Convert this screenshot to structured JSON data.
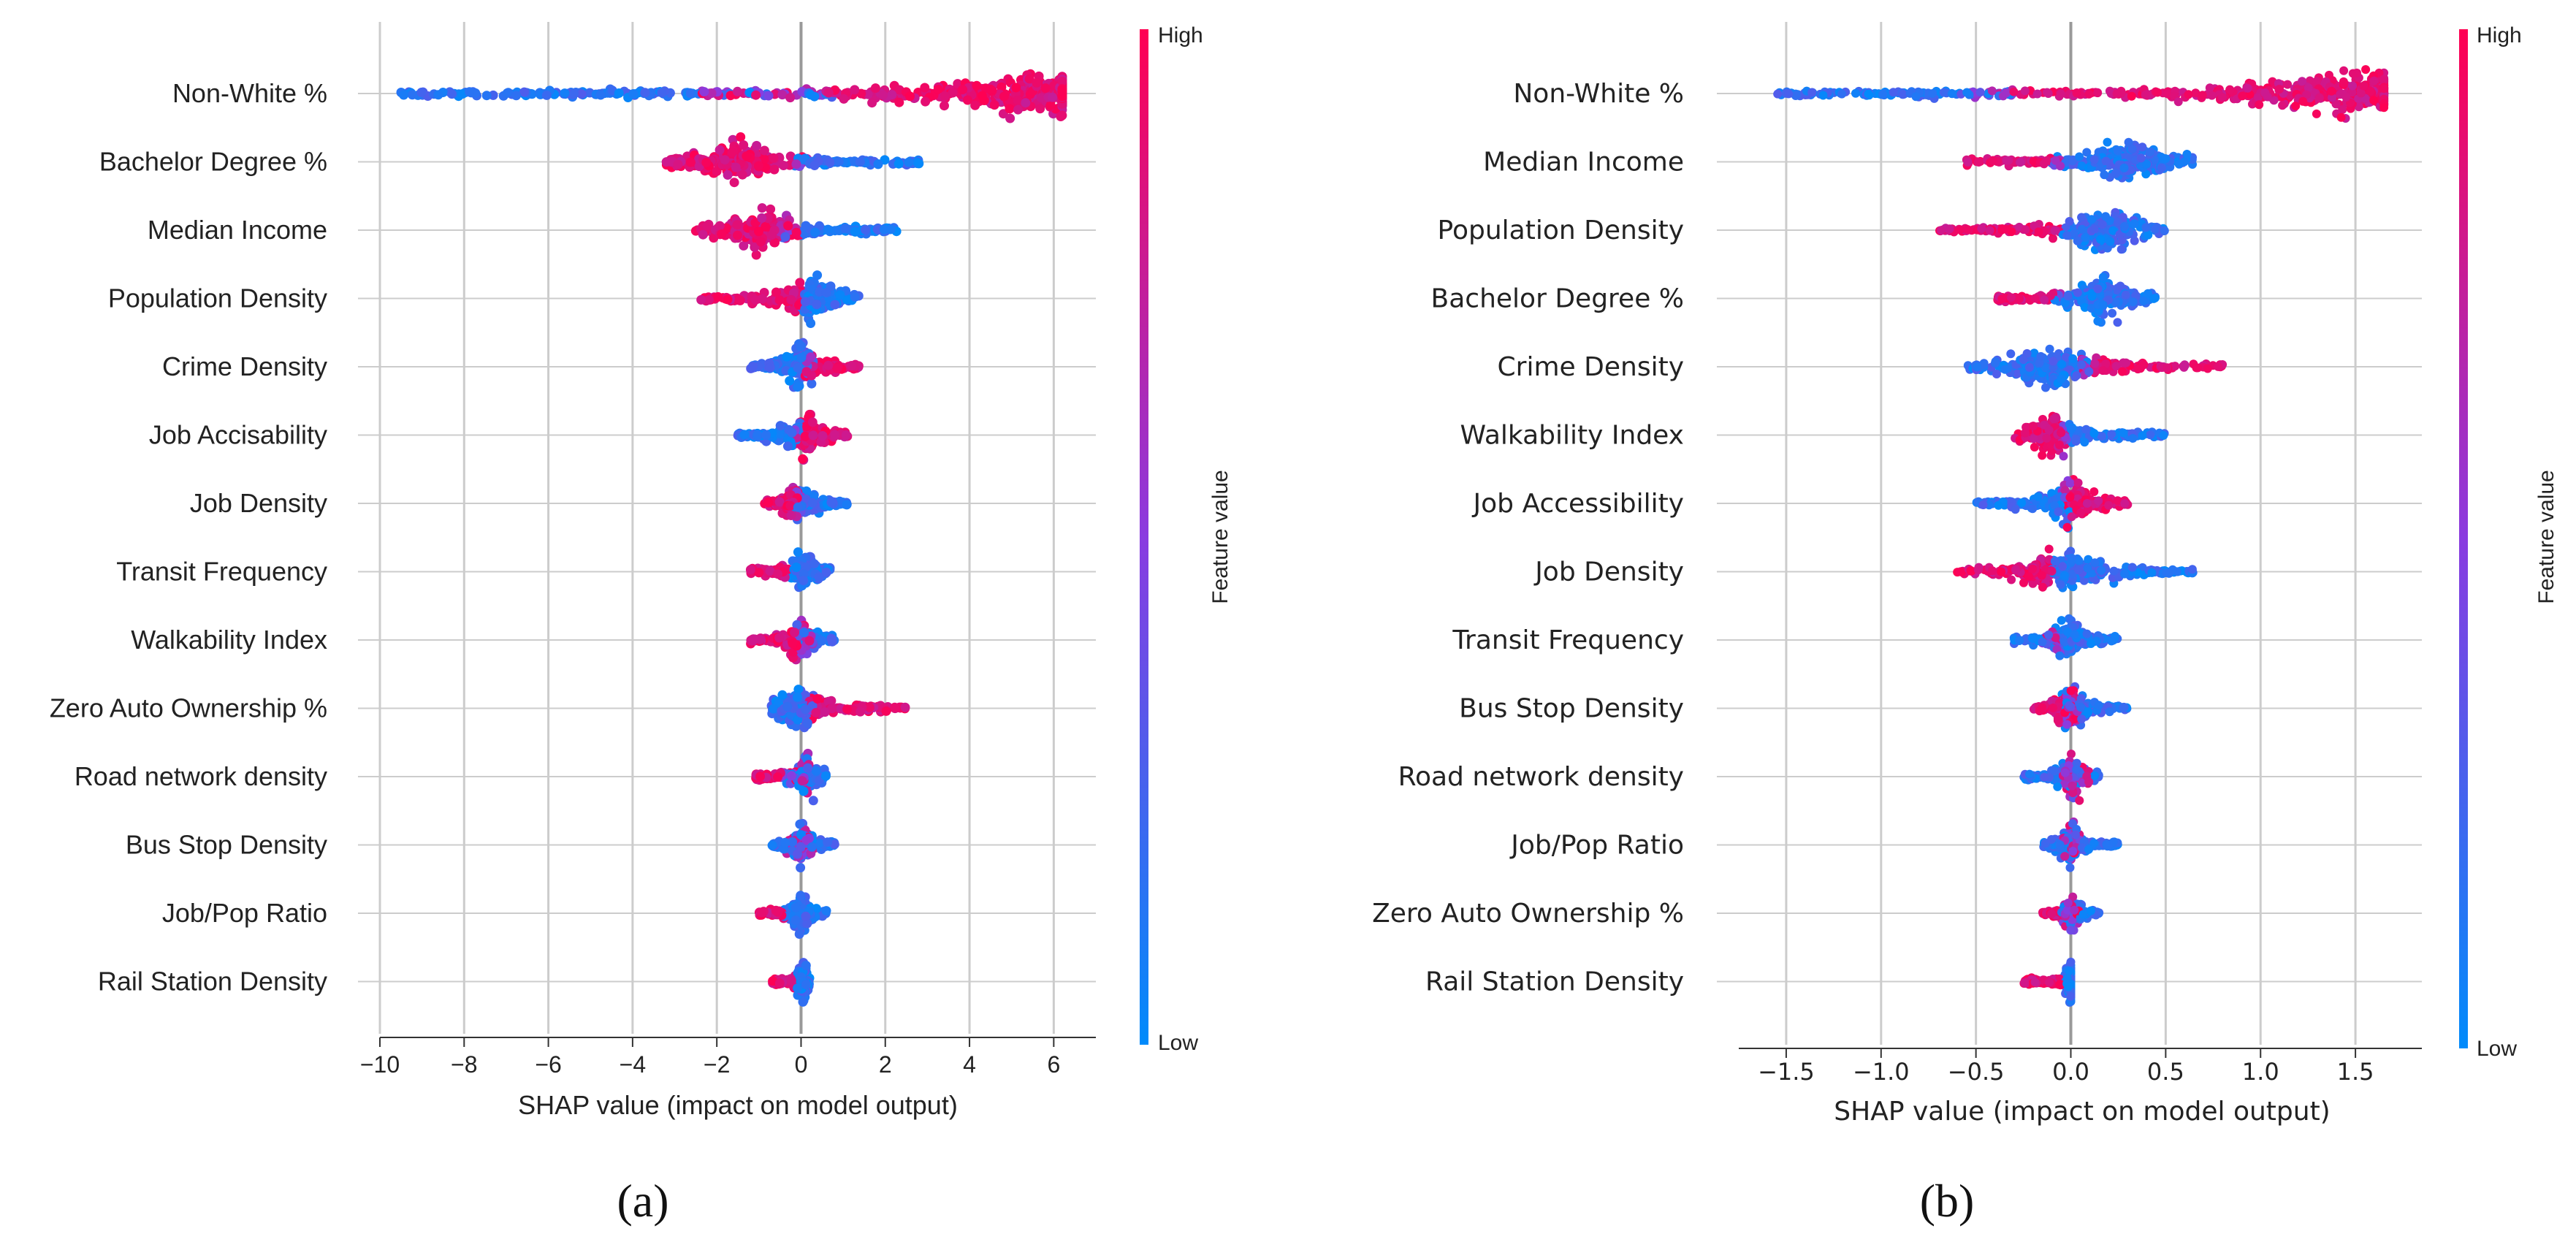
{
  "chart_data": [
    {
      "type": "scatter",
      "panel_label": "(a)",
      "xlabel": "SHAP value (impact on model output)",
      "xlim": [
        -10,
        7
      ],
      "xticks": [
        -10,
        -8,
        -6,
        -4,
        -2,
        0,
        2,
        4,
        6
      ],
      "xtick_labels": [
        "−10",
        "−8",
        "−6",
        "−4",
        "−2",
        "0",
        "2",
        "4",
        "6"
      ],
      "colorbar": {
        "label": "Feature value",
        "high": "High",
        "low": "Low"
      },
      "features": [
        {
          "name": "Non-White %",
          "min": -9.5,
          "max": 6.2,
          "low_range": [
            -9.5,
            -2.5
          ],
          "high_range": [
            0.8,
            6.2
          ],
          "dense_at": 5.6,
          "mode": "split_low_left"
        },
        {
          "name": "Bachelor Degree %",
          "min": -3.2,
          "max": 2.8,
          "high_range": [
            -3.2,
            -0.2
          ],
          "low_range": [
            0.2,
            2.8
          ],
          "dense_at": -1.5,
          "mode": "split_high_left"
        },
        {
          "name": "Median Income",
          "min": -2.5,
          "max": 2.3,
          "high_range": [
            -2.5,
            -0.5
          ],
          "low_range": [
            0.0,
            2.3
          ],
          "dense_at": -1.0,
          "mode": "split_high_left"
        },
        {
          "name": "Population Density",
          "min": -2.4,
          "max": 1.4,
          "high_range": [
            -2.4,
            0.0
          ],
          "low_range": [
            0.0,
            1.4
          ],
          "dense_at": 0.2,
          "mode": "split_high_left"
        },
        {
          "name": "Crime Density",
          "min": -1.3,
          "max": 1.4,
          "low_range": [
            -1.3,
            0.1
          ],
          "high_range": [
            0.3,
            1.4
          ],
          "dense_at": 0.0,
          "mode": "split_low_left"
        },
        {
          "name": "Job Accisability",
          "min": -1.5,
          "max": 1.1,
          "low_range": [
            -1.5,
            0.0
          ],
          "high_range": [
            -0.2,
            1.1
          ],
          "dense_at": 0.1,
          "mode": "split_low_left"
        },
        {
          "name": "Job Density",
          "min": -0.9,
          "max": 1.1,
          "low_range": [
            -0.2,
            1.1
          ],
          "high_range": [
            -0.9,
            0.0
          ],
          "dense_at": -0.1,
          "mode": "split_high_left"
        },
        {
          "name": "Transit Frequency",
          "min": -1.2,
          "max": 0.7,
          "low_range": [
            -0.3,
            0.7
          ],
          "high_range": [
            -1.2,
            -0.2
          ],
          "dense_at": 0.1,
          "mode": "split_high_left"
        },
        {
          "name": "Walkability Index",
          "min": -1.2,
          "max": 0.8,
          "low_range": [
            -0.1,
            0.8
          ],
          "high_range": [
            -1.2,
            0.3
          ],
          "dense_at": 0.0,
          "mode": "mixed"
        },
        {
          "name": "Zero Auto Ownership %",
          "min": -0.7,
          "max": 2.5,
          "low_range": [
            -0.7,
            0.3
          ],
          "high_range": [
            0.2,
            2.5
          ],
          "dense_at": -0.1,
          "mode": "split_low_left"
        },
        {
          "name": "Road network density",
          "min": -1.1,
          "max": 0.6,
          "low_range": [
            -0.5,
            0.6
          ],
          "high_range": [
            -1.1,
            0.2
          ],
          "dense_at": 0.1,
          "mode": "mixed"
        },
        {
          "name": "Bus Stop Density",
          "min": -0.7,
          "max": 0.8,
          "low_range": [
            -0.7,
            0.8
          ],
          "high_range": [
            -0.4,
            0.4
          ],
          "dense_at": 0.0,
          "mode": "mixed"
        },
        {
          "name": "Job/Pop Ratio",
          "min": -1.0,
          "max": 0.6,
          "low_range": [
            -0.4,
            0.6
          ],
          "high_range": [
            -1.0,
            -0.3
          ],
          "dense_at": 0.0,
          "mode": "split_high_left"
        },
        {
          "name": "Rail Station Density",
          "min": -0.7,
          "max": 0.2,
          "low_range": [
            -0.1,
            0.2
          ],
          "high_range": [
            -0.7,
            -0.1
          ],
          "dense_at": 0.05,
          "mode": "split_high_left"
        }
      ]
    },
    {
      "type": "scatter",
      "panel_label": "(b)",
      "xlabel": "SHAP value (impact on model output)",
      "xlim": [
        -1.75,
        1.85
      ],
      "xticks": [
        -1.5,
        -1.0,
        -0.5,
        0.0,
        0.5,
        1.0,
        1.5
      ],
      "xtick_labels": [
        "−1.5",
        "−1.0",
        "−0.5",
        "0.0",
        "0.5",
        "1.0",
        "1.5"
      ],
      "colorbar": {
        "label": "Feature value",
        "high": "High",
        "low": "Low"
      },
      "features": [
        {
          "name": "Non-White %",
          "min": -1.55,
          "max": 1.65,
          "low_range": [
            -1.55,
            -0.3
          ],
          "high_range": [
            -0.6,
            1.65
          ],
          "dense_at": 1.5,
          "mode": "split_low_left"
        },
        {
          "name": "Median Income",
          "min": -0.55,
          "max": 0.65,
          "high_range": [
            -0.55,
            -0.05
          ],
          "low_range": [
            -0.1,
            0.65
          ],
          "dense_at": 0.3,
          "mode": "split_high_left"
        },
        {
          "name": "Population Density",
          "min": -0.7,
          "max": 0.5,
          "high_range": [
            -0.7,
            -0.05
          ],
          "low_range": [
            -0.05,
            0.5
          ],
          "dense_at": 0.2,
          "mode": "split_high_left"
        },
        {
          "name": "Bachelor Degree %",
          "min": -0.4,
          "max": 0.45,
          "high_range": [
            -0.4,
            -0.05
          ],
          "low_range": [
            -0.1,
            0.45
          ],
          "dense_at": 0.15,
          "mode": "split_high_left"
        },
        {
          "name": "Crime Density",
          "min": -0.55,
          "max": 0.8,
          "low_range": [
            -0.55,
            0.1
          ],
          "high_range": [
            0.05,
            0.8
          ],
          "dense_at": -0.1,
          "mode": "split_low_left"
        },
        {
          "name": "Walkability Index",
          "min": -0.3,
          "max": 0.5,
          "high_range": [
            -0.3,
            0.0
          ],
          "low_range": [
            -0.05,
            0.5
          ],
          "dense_at": -0.1,
          "mode": "split_high_left"
        },
        {
          "name": "Job Accessibility",
          "min": -0.5,
          "max": 0.3,
          "low_range": [
            -0.5,
            0.0
          ],
          "high_range": [
            -0.05,
            0.3
          ],
          "dense_at": 0.0,
          "mode": "split_low_left"
        },
        {
          "name": "Job Density",
          "min": -0.6,
          "max": 0.65,
          "high_range": [
            -0.6,
            -0.1
          ],
          "low_range": [
            -0.1,
            0.65
          ],
          "dense_at": -0.05,
          "mode": "split_high_left"
        },
        {
          "name": "Transit Frequency",
          "min": -0.3,
          "max": 0.25,
          "low_range": [
            -0.3,
            0.25
          ],
          "high_range": [
            -0.15,
            -0.05
          ],
          "dense_at": 0.0,
          "mode": "mixed"
        },
        {
          "name": "Bus Stop Density",
          "min": -0.2,
          "max": 0.3,
          "low_range": [
            -0.05,
            0.3
          ],
          "high_range": [
            -0.2,
            0.05
          ],
          "dense_at": 0.0,
          "mode": "mixed"
        },
        {
          "name": "Road network density",
          "min": -0.25,
          "max": 0.15,
          "low_range": [
            -0.25,
            0.15
          ],
          "high_range": [
            -0.05,
            0.1
          ],
          "dense_at": 0.0,
          "mode": "mixed"
        },
        {
          "name": "Job/Pop Ratio",
          "min": -0.15,
          "max": 0.25,
          "low_range": [
            -0.15,
            0.25
          ],
          "high_range": [
            -0.05,
            0.05
          ],
          "dense_at": 0.0,
          "mode": "mixed"
        },
        {
          "name": "Zero Auto Ownership %",
          "min": -0.15,
          "max": 0.15,
          "low_range": [
            -0.05,
            0.15
          ],
          "high_range": [
            -0.15,
            0.05
          ],
          "dense_at": 0.0,
          "mode": "mixed"
        },
        {
          "name": "Rail Station Density",
          "min": -0.25,
          "max": 0.0,
          "low_range": [
            -0.05,
            0.0
          ],
          "high_range": [
            -0.25,
            -0.05
          ],
          "dense_at": 0.0,
          "mode": "split_high_left"
        }
      ]
    }
  ],
  "colors": {
    "high": "#ff0052",
    "mid": "#8a3be0",
    "low": "#008bfb",
    "grid": "#cccccc",
    "zero": "#999999"
  }
}
